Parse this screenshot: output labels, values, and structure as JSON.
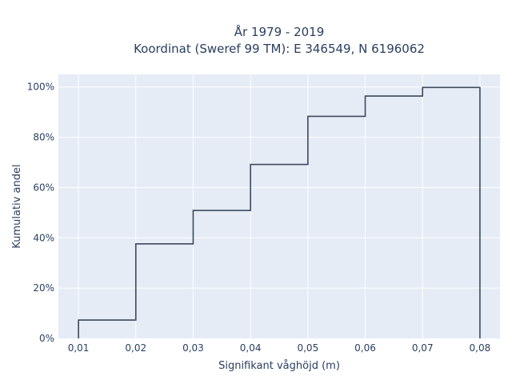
{
  "chart_data": {
    "type": "line",
    "line_shape": "step",
    "title_line1": "År 1979 - 2019",
    "title_line2": "Koordinat (Sweref 99 TM): E 346549, N 6196062",
    "xlabel": "Signifikant våghöjd (m)",
    "ylabel": "Kumulativ andel",
    "x_ticks": [
      "0,01",
      "0,02",
      "0,03",
      "0,04",
      "0,05",
      "0,06",
      "0,07",
      "0,08"
    ],
    "y_ticks": [
      "0%",
      "20%",
      "40%",
      "60%",
      "80%",
      "100%"
    ],
    "xlim": [
      0.0065,
      0.0835
    ],
    "ylim": [
      0,
      1.05
    ],
    "series": [
      {
        "x": [
          0.01,
          0.02,
          0.03,
          0.04,
          0.05,
          0.06,
          0.07,
          0.08
        ],
        "values": [
          0.073,
          0.376,
          0.509,
          0.692,
          0.883,
          0.964,
          0.998,
          1.0
        ]
      }
    ],
    "colors": {
      "line": "#3d4a5c",
      "plot_bg": "#e5ecf6",
      "grid": "#ffffff"
    },
    "grid": true,
    "legend": "none"
  }
}
